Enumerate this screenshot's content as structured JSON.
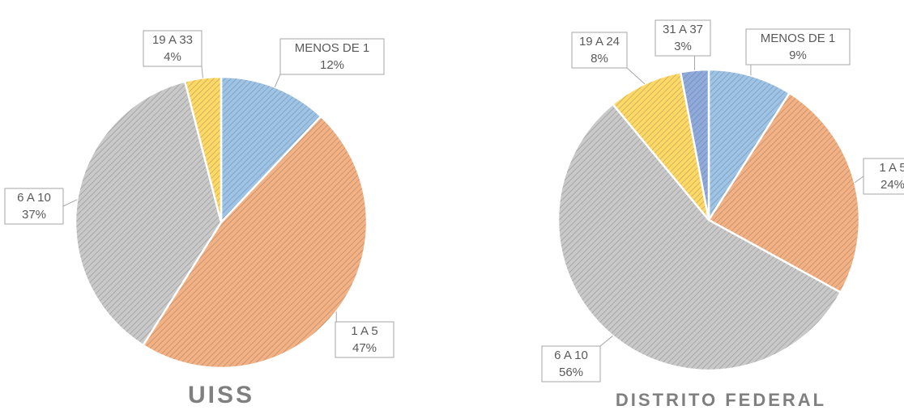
{
  "chart_data": [
    {
      "type": "pie",
      "title": "UISS",
      "categories": [
        "MENOS DE 1",
        "1 A 5",
        "6 A 10",
        "19 A 33"
      ],
      "values": [
        12,
        47,
        37,
        4
      ],
      "value_labels": [
        "12%",
        "47%",
        "37%",
        "4%"
      ],
      "colors": [
        "#9dc3e6",
        "#f4b183",
        "#c9c9c9",
        "#ffd966"
      ]
    },
    {
      "type": "pie",
      "title": "DISTRITO FEDERAL",
      "categories": [
        "MENOS DE 1",
        "1 A 5",
        "6 A 10",
        "19 A 24",
        "31 A 37"
      ],
      "values": [
        9,
        24,
        56,
        8,
        3
      ],
      "value_labels": [
        "9%",
        "24%",
        "56%",
        "8%",
        "3%"
      ],
      "colors": [
        "#9dc3e6",
        "#f4b183",
        "#c9c9c9",
        "#ffd966",
        "#8faadc"
      ]
    }
  ]
}
